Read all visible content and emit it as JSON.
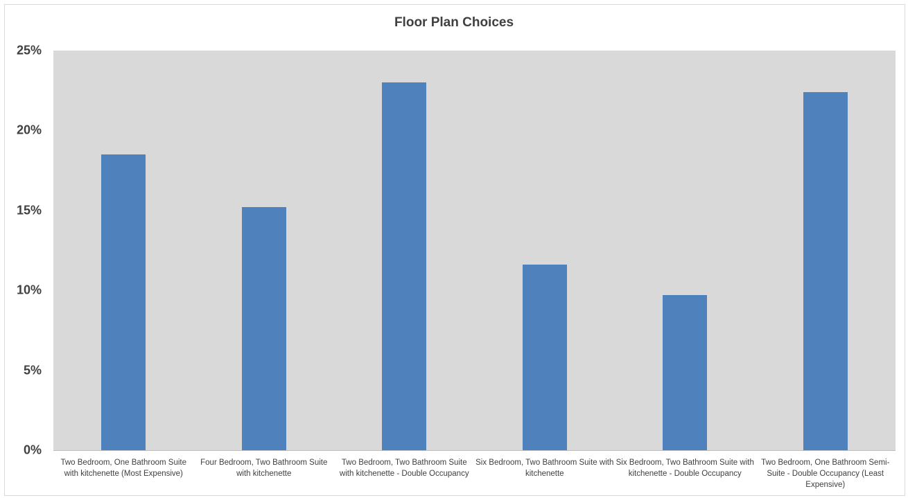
{
  "chart_data": {
    "type": "bar",
    "title": "Floor Plan Choices",
    "xlabel": "",
    "ylabel": "",
    "ylim": [
      0,
      25
    ],
    "yticks": [
      "0%",
      "5%",
      "10%",
      "15%",
      "20%",
      "25%"
    ],
    "categories": [
      "Two Bedroom, One Bathroom Suite with kitchenette (Most Expensive)",
      "Four Bedroom, Two Bathroom Suite with kitchenette",
      "Two Bedroom, Two Bathroom Suite with kitchenette - Double Occupancy",
      "Six Bedroom, Two Bathroom Suite with kitchenette",
      "Six Bedroom, Two Bathroom Suite with kitchenette - Double Occupancy",
      "Two Bedroom, One Bathroom Semi-Suite - Double Occupancy (Least Expensive)"
    ],
    "values": [
      18.5,
      15.2,
      23.0,
      11.6,
      9.7,
      22.4
    ],
    "grid": false,
    "colors": {
      "bar": "#4f81bd",
      "plot_background": "#d9d9d9"
    }
  }
}
